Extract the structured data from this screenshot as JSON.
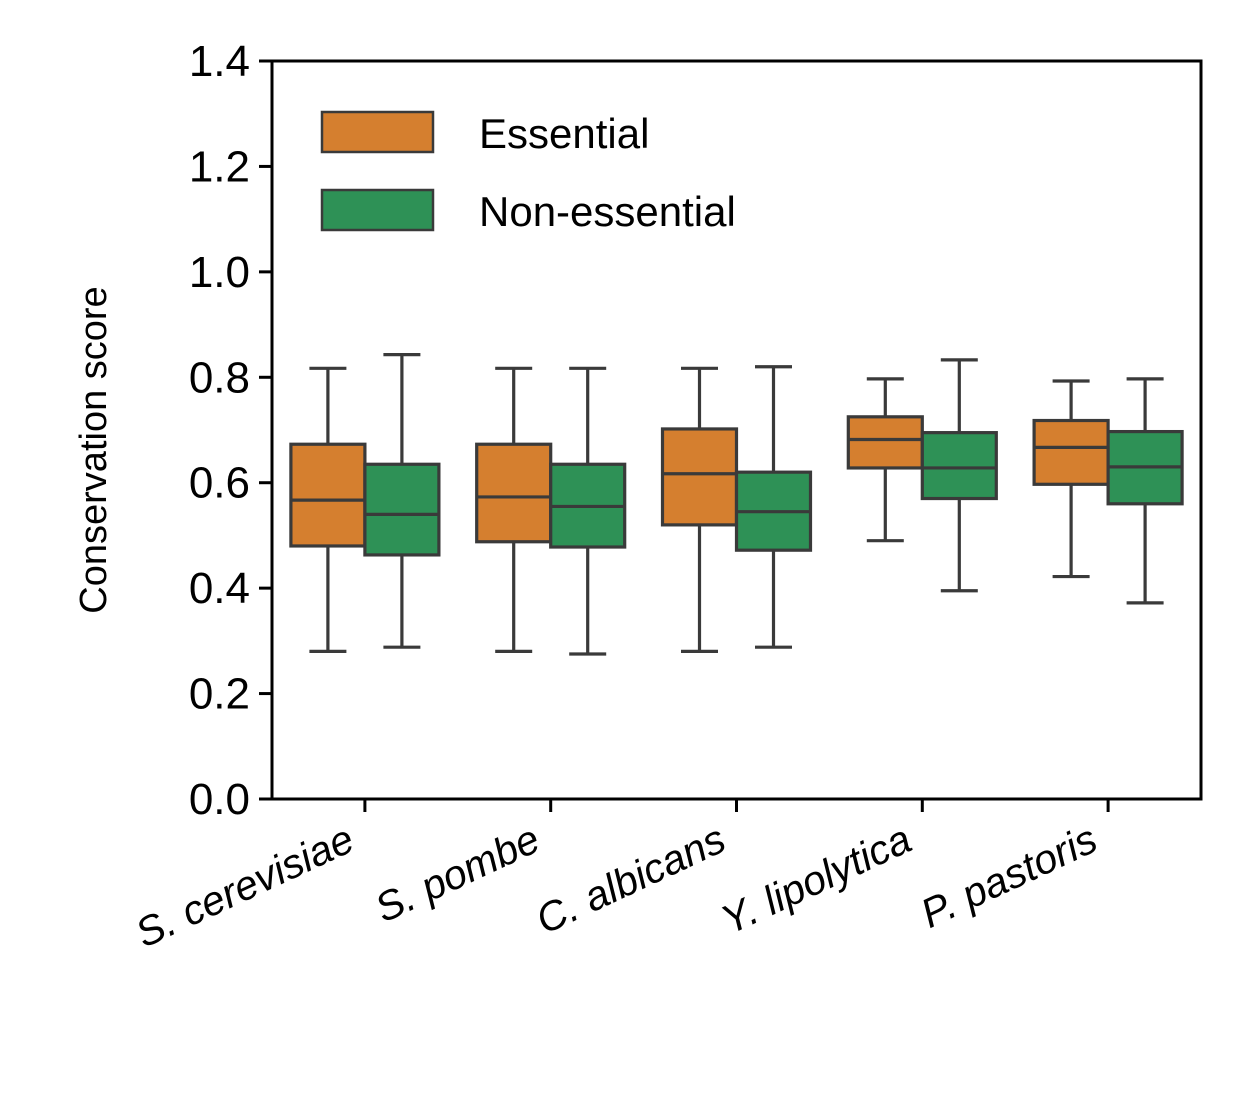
{
  "chart_data": {
    "type": "box",
    "ylabel": "Conservation score",
    "xlabel": "",
    "ylim": [
      0.0,
      1.4
    ],
    "yticks": [
      "0.0",
      "0.2",
      "0.4",
      "0.6",
      "0.8",
      "1.0",
      "1.2",
      "1.4"
    ],
    "categories": [
      "S. cerevisiae",
      "S. pombe",
      "C. albicans",
      "Y. lipolytica",
      "P. pastoris"
    ],
    "legend_position": "upper-left",
    "series": [
      {
        "name": "Essential",
        "color": "#d57f2f",
        "boxes": [
          {
            "whisker_low": 0.28,
            "q1": 0.48,
            "median": 0.567,
            "q3": 0.673,
            "whisker_high": 0.817
          },
          {
            "whisker_low": 0.28,
            "q1": 0.488,
            "median": 0.573,
            "q3": 0.673,
            "whisker_high": 0.817
          },
          {
            "whisker_low": 0.28,
            "q1": 0.52,
            "median": 0.617,
            "q3": 0.702,
            "whisker_high": 0.817
          },
          {
            "whisker_low": 0.49,
            "q1": 0.628,
            "median": 0.682,
            "q3": 0.725,
            "whisker_high": 0.797
          },
          {
            "whisker_low": 0.422,
            "q1": 0.597,
            "median": 0.667,
            "q3": 0.718,
            "whisker_high": 0.793
          }
        ]
      },
      {
        "name": "Non-essential",
        "color": "#2e9156",
        "boxes": [
          {
            "whisker_low": 0.288,
            "q1": 0.463,
            "median": 0.54,
            "q3": 0.635,
            "whisker_high": 0.843
          },
          {
            "whisker_low": 0.275,
            "q1": 0.478,
            "median": 0.555,
            "q3": 0.635,
            "whisker_high": 0.817
          },
          {
            "whisker_low": 0.288,
            "q1": 0.472,
            "median": 0.545,
            "q3": 0.62,
            "whisker_high": 0.82
          },
          {
            "whisker_low": 0.395,
            "q1": 0.57,
            "median": 0.628,
            "q3": 0.695,
            "whisker_high": 0.833
          },
          {
            "whisker_low": 0.372,
            "q1": 0.56,
            "median": 0.63,
            "q3": 0.697,
            "whisker_high": 0.797
          }
        ]
      }
    ]
  }
}
